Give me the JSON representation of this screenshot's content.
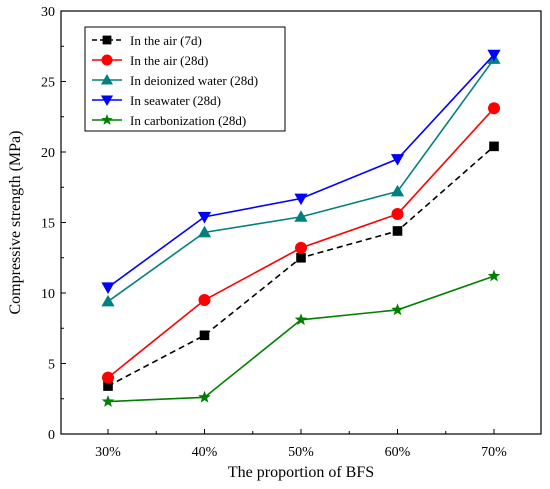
{
  "chart_data": {
    "type": "line",
    "xlabel": "The proportion of BFS",
    "ylabel": "Compressive strength (MPa)",
    "categories": [
      "30%",
      "40%",
      "50%",
      "60%",
      "70%"
    ],
    "ylim": [
      0,
      30
    ],
    "yticks": [
      0,
      5,
      10,
      15,
      20,
      25,
      30
    ],
    "legend_position": "top-left",
    "grid": false,
    "series": [
      {
        "name": "In the air (7d)",
        "color": "#000000",
        "marker": "square",
        "dashed": true,
        "values": [
          3.4,
          7.0,
          12.5,
          14.4,
          20.4
        ]
      },
      {
        "name": "In the air (28d)",
        "color": "#ff0000",
        "marker": "circle",
        "dashed": false,
        "values": [
          4.0,
          9.5,
          13.2,
          15.6,
          23.1
        ]
      },
      {
        "name": "In deionized water (28d)",
        "color": "#008080",
        "marker": "triangle-up",
        "dashed": false,
        "values": [
          9.4,
          14.3,
          15.4,
          17.2,
          26.6
        ]
      },
      {
        "name": "In seawater (28d)",
        "color": "#0000ff",
        "marker": "triangle-down",
        "dashed": false,
        "values": [
          10.4,
          15.4,
          16.7,
          19.5,
          26.9
        ]
      },
      {
        "name": "In carbonization (28d)",
        "color": "#008000",
        "marker": "star",
        "dashed": false,
        "values": [
          2.3,
          2.6,
          8.1,
          8.8,
          11.2
        ]
      }
    ]
  }
}
